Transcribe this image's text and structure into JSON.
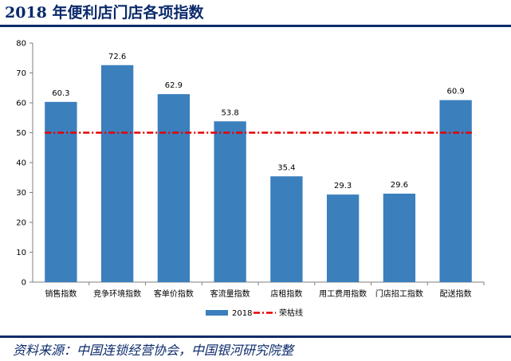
{
  "title": "2018 年便利店门店各项指数",
  "source": "资料来源：中国连锁经营协会，中国银河研究院整",
  "colors": {
    "bar": "#3b7fbd",
    "reference_line": "#e60000",
    "title": "#0b2a6b",
    "rule": "#0b2a6b"
  },
  "chart_data": {
    "type": "bar",
    "categories": [
      "销售指数",
      "竞争环境指数",
      "客单价指数",
      "客流量指数",
      "店租指数",
      "用工费用指数",
      "门店招工指数",
      "配送指数"
    ],
    "series": [
      {
        "name": "2018",
        "values": [
          60.3,
          72.6,
          62.9,
          53.8,
          35.4,
          29.3,
          29.6,
          60.9
        ]
      }
    ],
    "reference_line": {
      "name": "荣枯线",
      "value": 50,
      "style": "dash-dot"
    },
    "ylim": [
      0,
      80
    ],
    "yticks": [
      0,
      10,
      20,
      30,
      40,
      50,
      60,
      70,
      80
    ],
    "xlabel": "",
    "ylabel": "",
    "grid": false,
    "data_labels": true,
    "legend_position": "bottom"
  }
}
